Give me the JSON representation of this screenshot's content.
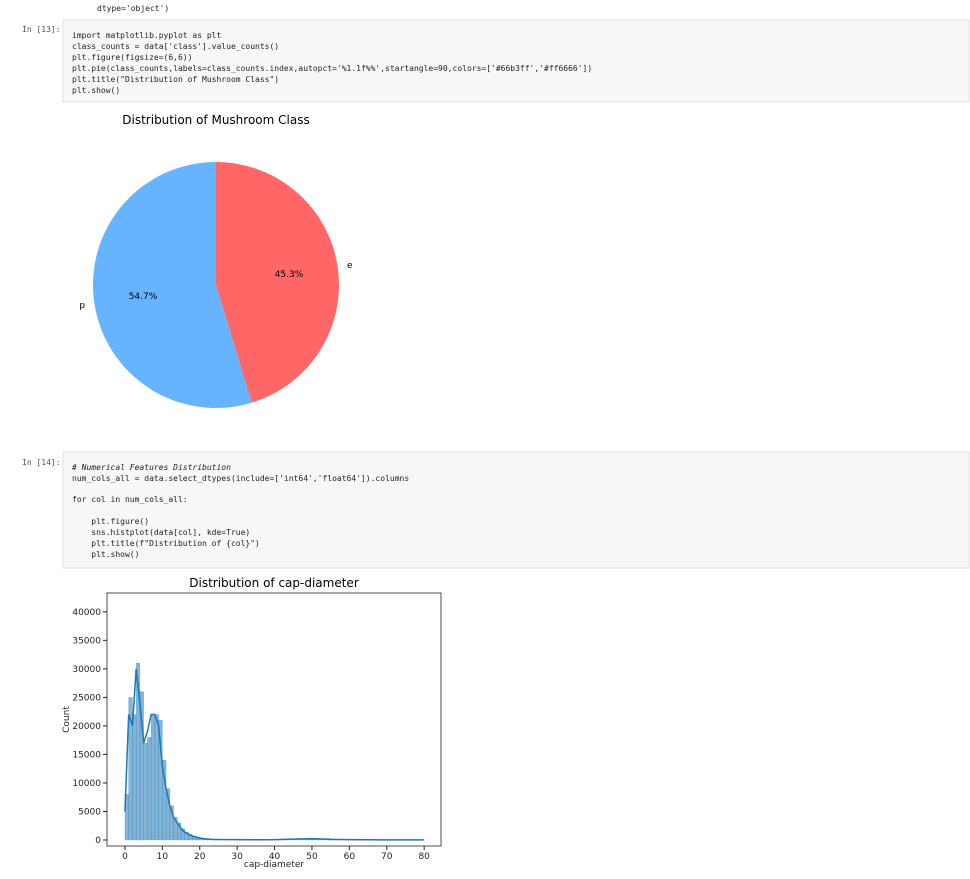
{
  "output_tail": "dtype='object')",
  "cells": [
    {
      "prompt": "In [13]:",
      "lines": [
        "import matplotlib.pyplot as plt",
        "class_counts = data['class'].value_counts()",
        "plt.figure(figsize=(6,6))",
        "plt.pie(class_counts,labels=class_counts.index,autopct='%1.1f%%',startangle=90,colors=['#66b3ff','#ff6666'])",
        "plt.title(\"Distribution of Mushroom Class\")",
        "plt.show()"
      ]
    },
    {
      "prompt": "In [14]:",
      "lines": [
        "# Numerical Features Distribution",
        "num_cols_all = data.select_dtypes(include=['int64','float64']).columns",
        "for col in num_cols_all:",
        "    plt.figure()",
        "    sns.histplot(data[col], kde=True)",
        "    plt.title(f\"Distribution of {col}\")",
        "    plt.show()"
      ]
    }
  ],
  "chart_data": [
    {
      "type": "pie",
      "title": "Distribution of Mushroom Class",
      "categories": [
        "p",
        "e"
      ],
      "values": [
        54.7,
        45.3
      ],
      "value_labels": [
        "54.7%",
        "45.3%"
      ],
      "colors": [
        "#66b3ff",
        "#ff6666"
      ],
      "start_angle": 90
    },
    {
      "type": "histogram",
      "title": "Distribution of cap-diameter",
      "x_label": "cap-diameter",
      "y_label": "Count",
      "color": "#1f77b4",
      "bins": [
        0,
        1,
        2,
        3,
        4,
        5,
        6,
        7,
        8,
        9,
        10,
        11,
        12,
        13,
        14,
        15,
        16,
        17,
        18,
        19,
        20,
        21,
        22,
        23,
        24,
        25,
        30,
        35,
        40,
        45,
        50,
        55,
        60,
        65,
        70,
        75,
        80
      ],
      "counts": [
        8000,
        25000,
        22000,
        31000,
        26000,
        17000,
        18000,
        22000,
        22000,
        21000,
        14000,
        9000,
        6000,
        4000,
        3000,
        2000,
        1400,
        1000,
        700,
        500,
        350,
        250,
        180,
        130,
        100,
        80,
        60,
        50,
        60,
        150,
        250,
        120,
        60,
        40,
        30,
        30
      ],
      "kde": {
        "x": [
          0,
          1,
          2,
          3,
          4,
          5,
          6,
          7,
          8,
          9,
          10,
          11,
          12,
          13,
          14,
          15,
          16,
          17,
          18,
          19,
          20,
          21,
          22,
          23,
          24,
          25,
          30,
          35,
          40,
          45,
          50,
          55,
          60,
          65,
          70,
          75,
          80
        ],
        "values": [
          5000,
          22000,
          20000,
          30000,
          24000,
          17000,
          19000,
          22000,
          22000,
          20000,
          13000,
          9000,
          6000,
          4000,
          3000,
          2000,
          1400,
          1000,
          700,
          500,
          350,
          250,
          180,
          130,
          100,
          80,
          60,
          50,
          60,
          150,
          250,
          120,
          60,
          40,
          30,
          30,
          30
        ]
      },
      "xlim": [
        -4.8,
        84.5
      ],
      "ylim": [
        -1050,
        43300
      ],
      "xticks": [
        0,
        10,
        20,
        30,
        40,
        50,
        60,
        70,
        80
      ],
      "yticks": [
        0,
        5000,
        10000,
        15000,
        20000,
        25000,
        30000,
        35000,
        40000
      ]
    }
  ]
}
